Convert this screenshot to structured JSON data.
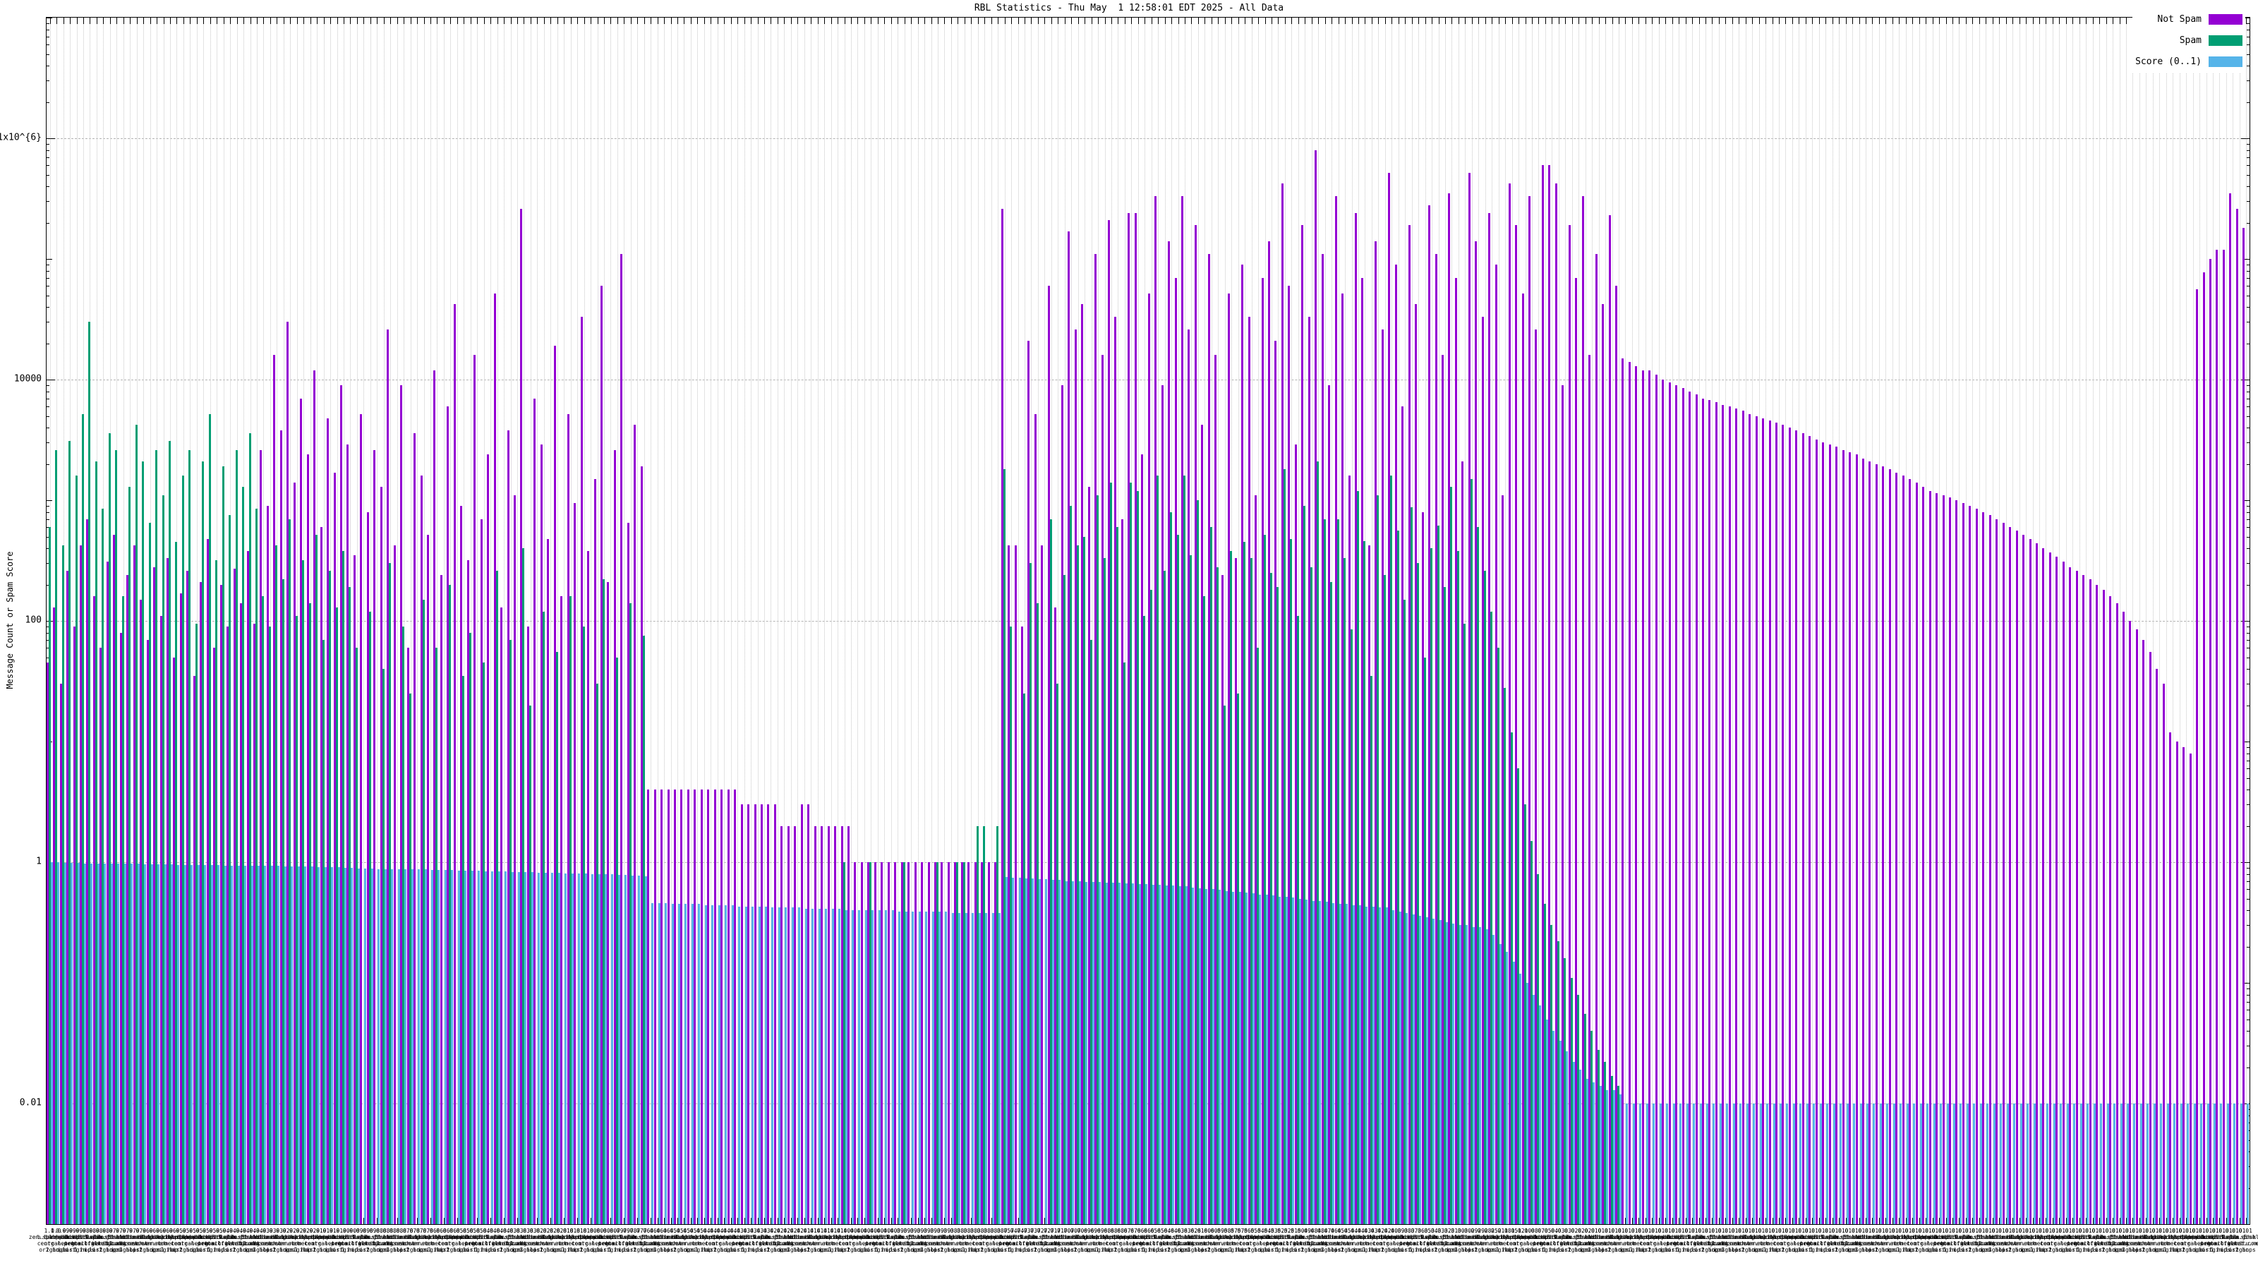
{
  "title": "RBL Statistics - Thu May  1 12:58:01 EDT 2025 - All Data",
  "y_axis": {
    "label": "Message Count or Spam Score",
    "tick_labels": [
      "1x10^{6}",
      "10000",
      "100",
      "1",
      "0.01"
    ],
    "tick_values": [
      1000000,
      10000,
      100,
      1,
      0.01
    ],
    "min": 0.001,
    "max": 10000000
  },
  "legend": {
    "items": [
      {
        "label": "Not Spam",
        "color": "#9400d3"
      },
      {
        "label": "Spam",
        "color": "#009e73"
      },
      {
        "label": "Score (0..1)",
        "color": "#56b4e9"
      }
    ]
  },
  "colors": {
    "not_spam": "#9400d3",
    "spam": "#009e73",
    "score": "#56b4e9",
    "grid": "#b2b2b2",
    "axis": "#000000",
    "background": "#ffffff"
  },
  "chart_data": {
    "type": "bar",
    "yscale": "log",
    "ylim": [
      0.001,
      10000000
    ],
    "grid": true,
    "legend_position": "top-right",
    "n_categories": 330,
    "title": "RBL Statistics - Thu May  1 12:58:01 EDT 2025 - All Data",
    "xlabel": "",
    "ylabel": "Message Count or Spam Score",
    "series": [
      {
        "name": "Not Spam",
        "values": [
          45,
          130,
          30,
          260,
          90,
          420,
          700,
          160,
          60,
          310,
          520,
          80,
          240,
          420,
          150,
          70,
          280,
          110,
          330,
          50,
          170,
          260,
          35,
          210,
          480,
          60,
          200,
          90,
          270,
          140,
          380,
          95,
          2600,
          900,
          16000,
          3800,
          30000,
          1400,
          7000,
          2400,
          12000,
          600,
          4800,
          1700,
          9000,
          2900,
          350,
          5200,
          800,
          2600,
          1300,
          26000,
          420,
          9000,
          60,
          3600,
          1600,
          520,
          12000,
          240,
          6000,
          42000,
          900,
          320,
          16000,
          700,
          2400,
          52000,
          130,
          3800,
          1100,
          260000,
          90,
          7000,
          2900,
          480,
          19000,
          160,
          5200,
          950,
          33000,
          380,
          1500,
          60000,
          210,
          2600,
          110000,
          650,
          4200,
          1900,
          4,
          4,
          4,
          4,
          4,
          4,
          4,
          4,
          4,
          4,
          4,
          4,
          4,
          4,
          3,
          3,
          3,
          3,
          3,
          3,
          2,
          2,
          2,
          3,
          3,
          2,
          2,
          2,
          2,
          2,
          2,
          1,
          1,
          1,
          1,
          1,
          1,
          1,
          1,
          1,
          1,
          1,
          1,
          1,
          1,
          1,
          1,
          1,
          1,
          1,
          1,
          1,
          1,
          260000,
          420,
          420,
          90,
          21000,
          5200,
          420,
          60000,
          130,
          9000,
          170000,
          26000,
          42000,
          1300,
          110000,
          16000,
          210000,
          33000,
          700,
          240000,
          240000,
          2400,
          52000,
          330000,
          9000,
          140000,
          70000,
          330000,
          26000,
          190000,
          4200,
          110000,
          16000,
          240,
          52000,
          330,
          90000,
          33000,
          1100,
          70000,
          140000,
          21000,
          420000,
          60000,
          2900,
          190000,
          33000,
          800000,
          110000,
          9000,
          330000,
          52000,
          1600,
          240000,
          70000,
          420,
          140000,
          26000,
          520000,
          90000,
          6000,
          190000,
          42000,
          800,
          280000,
          110000,
          16000,
          350000,
          70000,
          2100,
          520000,
          140000,
          33000,
          240000,
          90000,
          1100,
          420000,
          190000,
          52000,
          330000,
          26000,
          600000,
          600000,
          420000,
          9000,
          190000,
          70000,
          330000,
          16000,
          110000,
          42000,
          230000,
          60000,
          15000,
          14000,
          13000,
          12000,
          12000,
          11000,
          10000,
          9500,
          9000,
          8500,
          8000,
          7500,
          7000,
          6800,
          6500,
          6200,
          6000,
          5800,
          5500,
          5200,
          5000,
          4800,
          4600,
          4400,
          4200,
          4000,
          3800,
          3600,
          3400,
          3200,
          3000,
          2900,
          2800,
          2600,
          2500,
          2400,
          2200,
          2100,
          2000,
          1900,
          1800,
          1700,
          1600,
          1500,
          1400,
          1300,
          1200,
          1150,
          1100,
          1050,
          1000,
          950,
          900,
          850,
          800,
          750,
          700,
          650,
          600,
          560,
          520,
          480,
          440,
          400,
          370,
          340,
          310,
          280,
          260,
          240,
          220,
          200,
          180,
          160,
          140,
          120,
          100,
          85,
          70,
          55,
          40,
          30,
          12,
          10,
          9,
          8,
          56000,
          78000,
          100000,
          120000,
          120000,
          350000,
          260000,
          180000
        ]
      },
      {
        "name": "Spam",
        "values": [
          600,
          2600,
          420,
          3100,
          1600,
          5200,
          30000,
          2100,
          850,
          3600,
          2600,
          160,
          1300,
          4200,
          2100,
          650,
          2600,
          1100,
          3100,
          450,
          1600,
          2600,
          95,
          2100,
          5200,
          320,
          1900,
          750,
          2600,
          1300,
          3600,
          850,
          160,
          90,
          420,
          220,
          700,
          110,
          320,
          140,
          520,
          70,
          260,
          130,
          380,
          190,
          60,
          0,
          120,
          0,
          40,
          300,
          0,
          90,
          25,
          0,
          150,
          0,
          60,
          0,
          200,
          0,
          35,
          80,
          0,
          45,
          0,
          260,
          0,
          70,
          0,
          400,
          20,
          0,
          120,
          0,
          55,
          0,
          160,
          0,
          90,
          0,
          30,
          220,
          0,
          50,
          0,
          140,
          0,
          75,
          0,
          0,
          0,
          0,
          0,
          0,
          0,
          0,
          0,
          0,
          0,
          0,
          0,
          0,
          0,
          0,
          0,
          0,
          0,
          0,
          0,
          0,
          0,
          0,
          0,
          0,
          0,
          0,
          0,
          1,
          0,
          0,
          0,
          1,
          0,
          0,
          0,
          0,
          1,
          0,
          0,
          0,
          0,
          1,
          0,
          0,
          1,
          1,
          0,
          2,
          2,
          0,
          2,
          1800,
          90,
          0,
          25,
          300,
          140,
          0,
          700,
          30,
          240,
          900,
          420,
          500,
          70,
          1100,
          330,
          1400,
          600,
          45,
          1400,
          1200,
          110,
          180,
          1600,
          260,
          800,
          520,
          1600,
          350,
          1000,
          160,
          600,
          280,
          20,
          380,
          25,
          450,
          330,
          60,
          520,
          250,
          190,
          1800,
          480,
          110,
          900,
          280,
          2100,
          700,
          210,
          700,
          330,
          85,
          1200,
          460,
          35,
          1100,
          240,
          1600,
          560,
          150,
          880,
          300,
          50,
          400,
          620,
          190,
          1300,
          380,
          95,
          1500,
          600,
          260,
          120,
          60,
          28,
          12,
          6,
          3,
          1.5,
          0.8,
          0.45,
          0.3,
          0.22,
          0.16,
          0.11,
          0.08,
          0.055,
          0.04,
          0.028,
          0.022,
          0.017,
          0.014,
          0,
          0,
          0,
          0,
          0,
          0,
          0,
          0,
          0,
          0,
          0,
          0,
          0,
          0,
          0,
          0,
          0,
          0,
          0,
          0,
          0,
          0,
          0,
          0,
          0,
          0,
          0,
          0,
          0,
          0,
          0,
          0,
          0,
          0,
          0,
          0,
          0,
          0,
          0,
          0,
          0,
          0,
          0,
          0,
          0,
          0,
          0,
          0,
          0,
          0,
          0,
          0,
          0,
          0,
          0,
          0,
          0,
          0,
          0,
          0,
          0,
          0,
          0,
          0,
          0,
          0,
          0,
          0,
          0,
          0,
          0,
          0,
          0,
          0,
          0,
          0,
          0,
          0,
          0,
          0,
          0,
          0,
          0,
          0,
          0,
          0,
          0,
          0,
          0,
          0,
          0,
          0,
          0,
          0
        ]
      },
      {
        "name": "Score (0..1)",
        "values": [
          1.0,
          1.0,
          0.99,
          0.99,
          0.99,
          0.98,
          0.98,
          0.98,
          0.98,
          0.97,
          0.97,
          0.97,
          0.97,
          0.97,
          0.96,
          0.96,
          0.96,
          0.96,
          0.96,
          0.95,
          0.95,
          0.95,
          0.95,
          0.95,
          0.95,
          0.95,
          0.94,
          0.94,
          0.94,
          0.94,
          0.94,
          0.94,
          0.93,
          0.93,
          0.93,
          0.92,
          0.92,
          0.92,
          0.92,
          0.92,
          0.91,
          0.91,
          0.91,
          0.91,
          0.9,
          0.9,
          0.89,
          0.89,
          0.89,
          0.88,
          0.88,
          0.88,
          0.88,
          0.87,
          0.87,
          0.87,
          0.87,
          0.86,
          0.86,
          0.86,
          0.86,
          0.85,
          0.85,
          0.85,
          0.85,
          0.84,
          0.84,
          0.84,
          0.84,
          0.83,
          0.83,
          0.83,
          0.83,
          0.82,
          0.82,
          0.82,
          0.82,
          0.81,
          0.81,
          0.81,
          0.81,
          0.8,
          0.8,
          0.8,
          0.8,
          0.79,
          0.79,
          0.78,
          0.77,
          0.76,
          0.46,
          0.46,
          0.46,
          0.45,
          0.45,
          0.45,
          0.45,
          0.45,
          0.44,
          0.44,
          0.44,
          0.44,
          0.44,
          0.43,
          0.43,
          0.43,
          0.43,
          0.43,
          0.42,
          0.42,
          0.42,
          0.42,
          0.42,
          0.41,
          0.41,
          0.41,
          0.41,
          0.41,
          0.41,
          0.4,
          0.4,
          0.4,
          0.4,
          0.4,
          0.4,
          0.4,
          0.4,
          0.39,
          0.39,
          0.39,
          0.39,
          0.39,
          0.39,
          0.39,
          0.39,
          0.38,
          0.38,
          0.38,
          0.38,
          0.38,
          0.38,
          0.38,
          0.38,
          0.75,
          0.74,
          0.74,
          0.73,
          0.73,
          0.72,
          0.72,
          0.71,
          0.71,
          0.7,
          0.7,
          0.7,
          0.69,
          0.69,
          0.69,
          0.68,
          0.68,
          0.68,
          0.67,
          0.67,
          0.66,
          0.66,
          0.65,
          0.65,
          0.64,
          0.64,
          0.63,
          0.63,
          0.62,
          0.61,
          0.6,
          0.6,
          0.59,
          0.58,
          0.57,
          0.57,
          0.56,
          0.55,
          0.54,
          0.54,
          0.53,
          0.52,
          0.52,
          0.51,
          0.5,
          0.49,
          0.48,
          0.48,
          0.47,
          0.46,
          0.45,
          0.45,
          0.44,
          0.44,
          0.43,
          0.43,
          0.42,
          0.42,
          0.4,
          0.39,
          0.38,
          0.37,
          0.36,
          0.35,
          0.34,
          0.33,
          0.32,
          0.31,
          0.3,
          0.3,
          0.29,
          0.29,
          0.28,
          0.25,
          0.21,
          0.18,
          0.15,
          0.12,
          0.1,
          0.08,
          0.065,
          0.05,
          0.04,
          0.033,
          0.027,
          0.022,
          0.019,
          0.016,
          0.015,
          0.014,
          0.013,
          0.013,
          0.012,
          0.01,
          0.01,
          0.01,
          0.01,
          0.01,
          0.01,
          0.01,
          0.01,
          0.01,
          0.01,
          0.01,
          0.01,
          0.01,
          0.01,
          0.01,
          0.01,
          0.01,
          0.01,
          0.01,
          0.01,
          0.01,
          0.01,
          0.01,
          0.01,
          0.01,
          0.01,
          0.01,
          0.01,
          0.01,
          0.01,
          0.01,
          0.01,
          0.01,
          0.01,
          0.01,
          0.01,
          0.01,
          0.01,
          0.01,
          0.01,
          0.01,
          0.01,
          0.01,
          0.01,
          0.01,
          0.01,
          0.01,
          0.01,
          0.01,
          0.01,
          0.01,
          0.01,
          0.01,
          0.01,
          0.01,
          0.01,
          0.01,
          0.01,
          0.01,
          0.01,
          0.01,
          0.01,
          0.01,
          0.01,
          0.01,
          0.01,
          0.01,
          0.01,
          0.01,
          0.01,
          0.01,
          0.01,
          0.01,
          0.01,
          0.01,
          0.01,
          0.01,
          0.01,
          0.01,
          0.01,
          0.01,
          0.01,
          0.01,
          0.01,
          0.01,
          0.01,
          0.01,
          0.01,
          0.01,
          0.01,
          0.01,
          0.01,
          0.01,
          0.01
        ]
      }
    ],
    "x_tick_label_pool": [
      "zen.spamhaus|org|origin",
      "b.barracuda|central.org|2 hops",
      "bl.spamcop|net|ips",
      "dnsbl.sorbs|net|list",
      "psbl.surriel|com|origin",
      "dnsbl-1.uce|protect.net|1 hop",
      "bl.0spam|org|ips",
      "hostkarma.junk|emailfilter.com|list",
      "all.s5h|net|origin",
      "ix.dnsbl|manitu.net|2 hops",
      "dnsbl.drone|bl.org|ips",
      "truncate|gbudb.net|origin",
      "combined|abuse.ch|3 hops",
      "ubl.unsub|score.com|list",
      "bl.mailspike|net|origin",
      "rbl.inter|server.net|2 hops",
      "dnsbl.spfbl|net|ips",
      "bogons.cymru|com|origin",
      "z.mailspike|net|1 hop",
      "bl.nordspam|com|list"
    ]
  }
}
